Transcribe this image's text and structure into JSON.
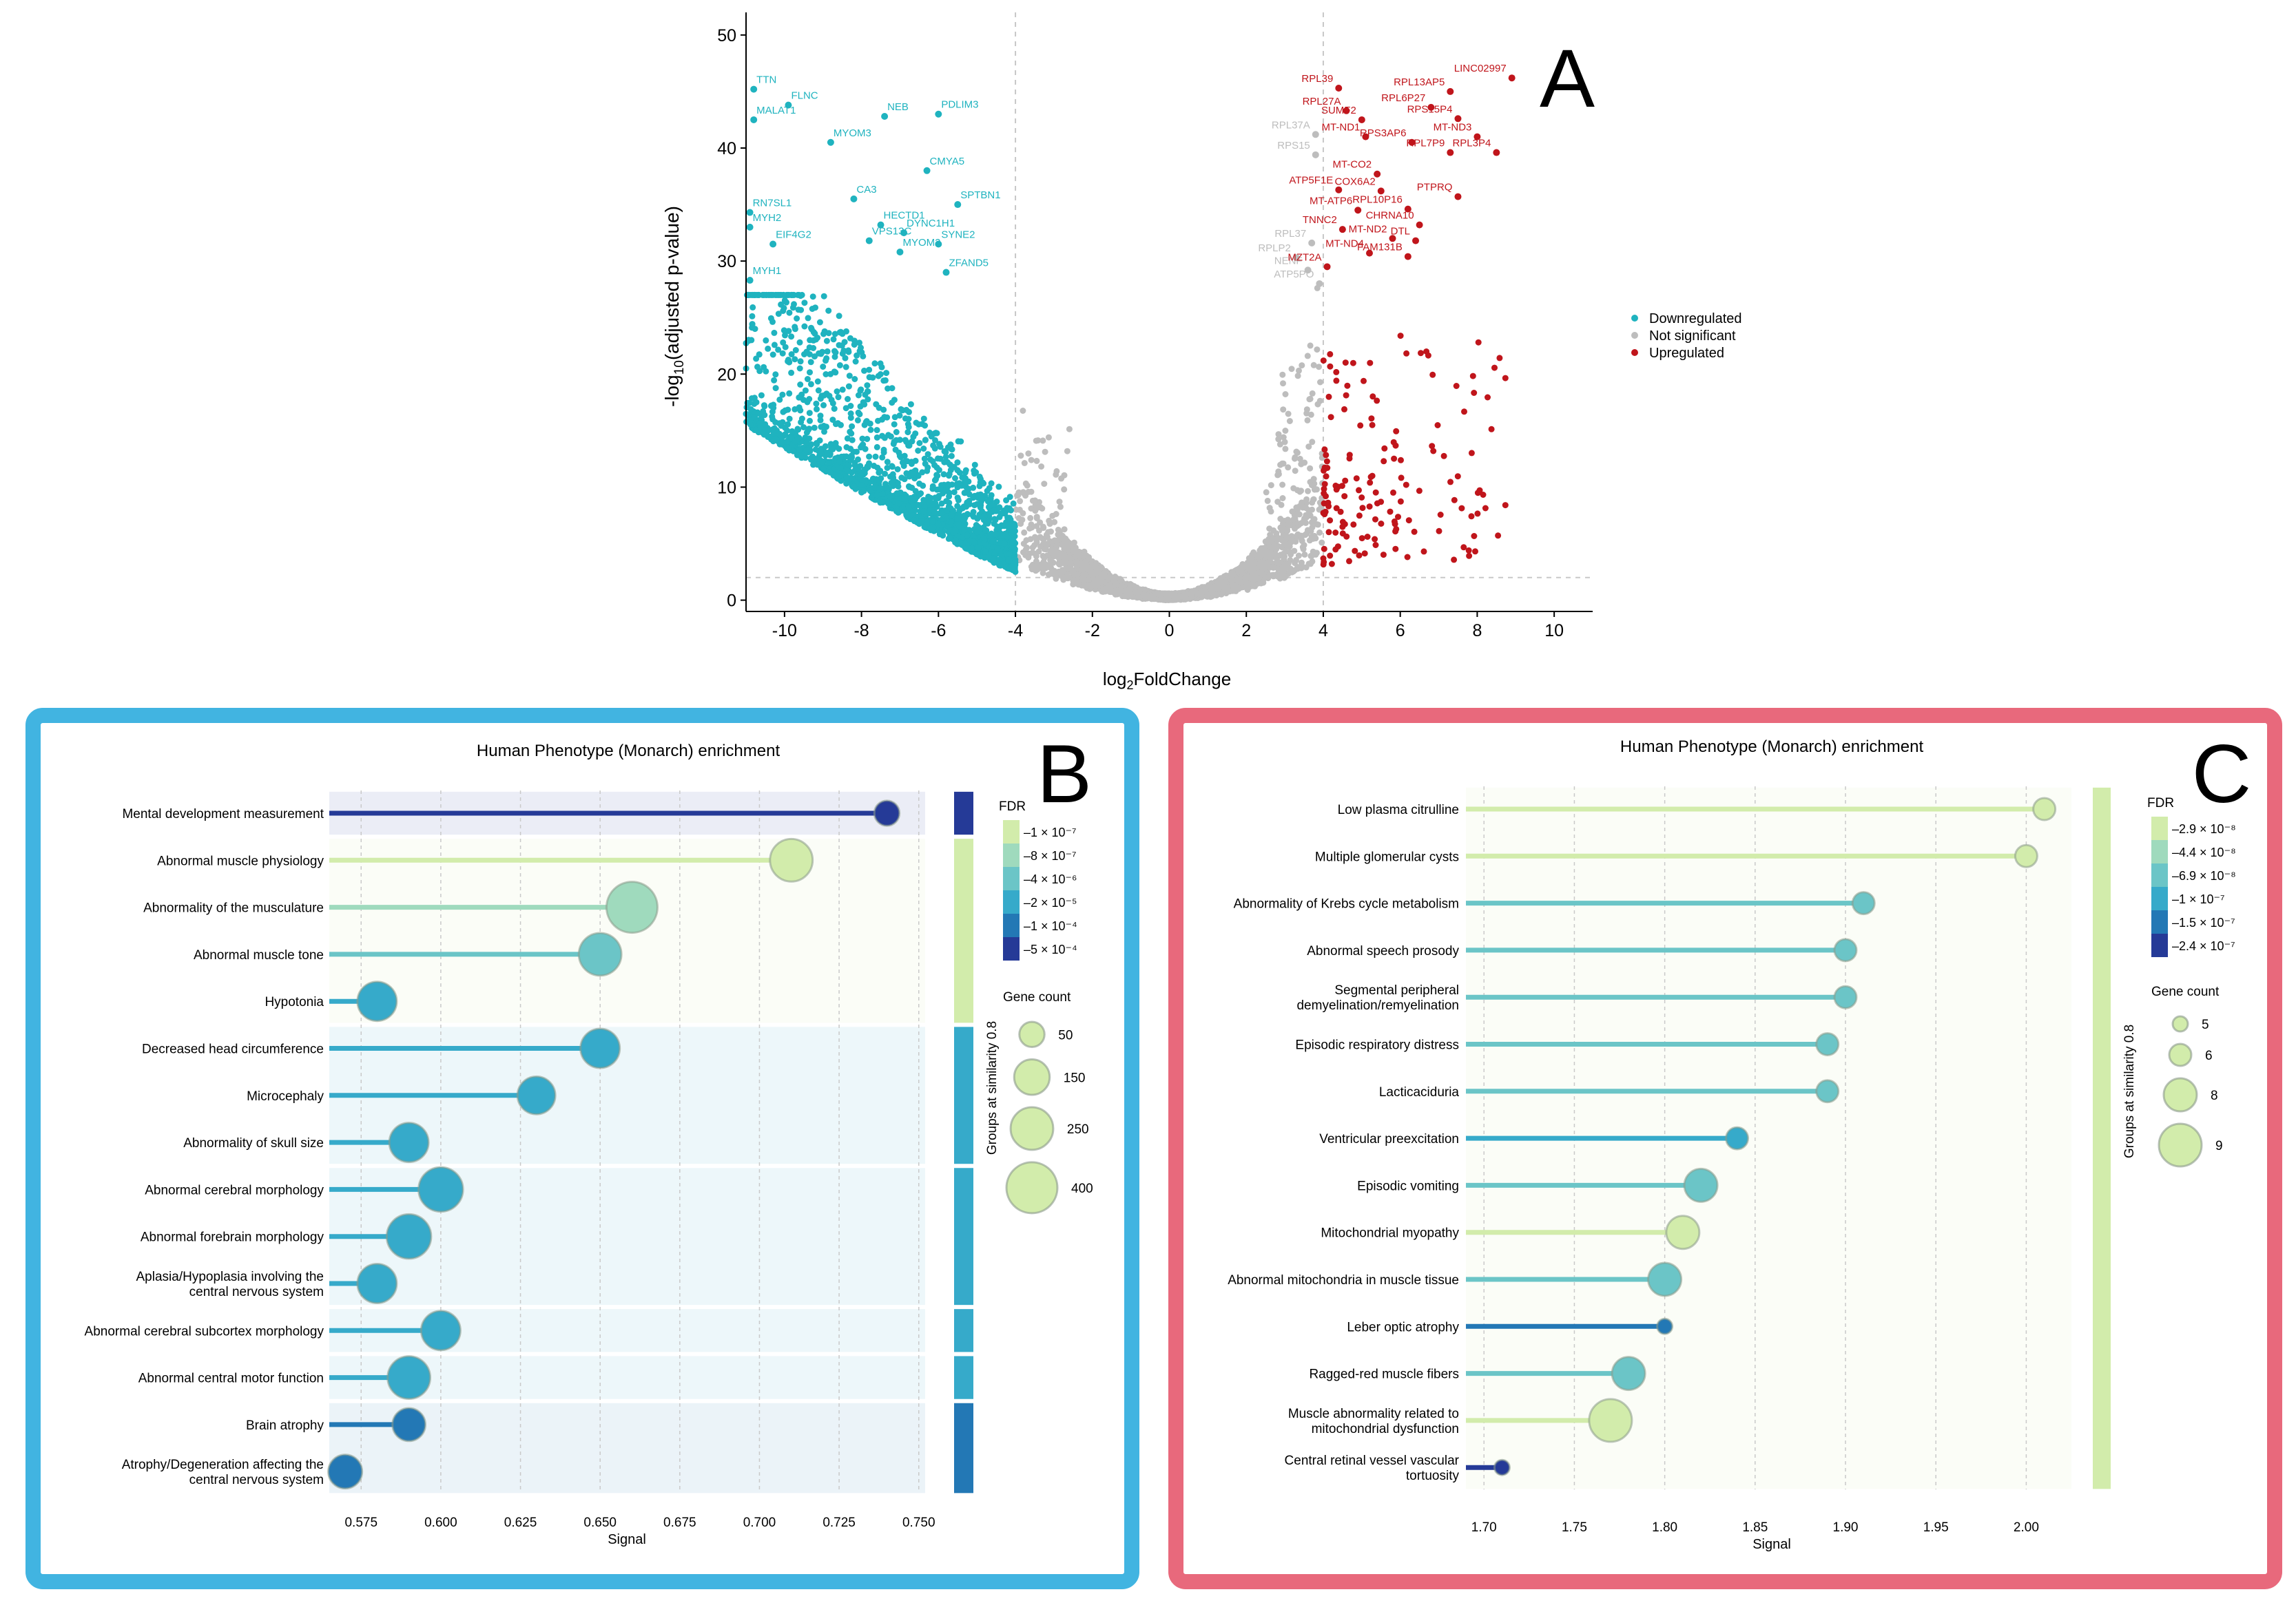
{
  "colors": {
    "down": "#1fb3bf",
    "ns": "#bdbdbd",
    "up": "#c0151b",
    "panelB_border": "#41b4e1",
    "panelC_border": "#e8697c"
  },
  "chart_data": [
    {
      "type": "scatter",
      "panel_label": "A",
      "title": "",
      "xlabel": "log2FoldChange",
      "ylabel": "-log10(adjusted p-value)",
      "xlim": [
        -11,
        11
      ],
      "ylim": [
        -1,
        52
      ],
      "x_ticks": [
        -10,
        -8,
        -6,
        -4,
        -2,
        0,
        2,
        4,
        6,
        8,
        10
      ],
      "y_ticks": [
        0,
        10,
        20,
        30,
        40,
        50
      ],
      "thresholds": {
        "logfc": [
          -4,
          4
        ],
        "padj": 2
      },
      "legend": {
        "position": "right",
        "entries": [
          {
            "label": "Downregulated",
            "key": "down"
          },
          {
            "label": "Not significant",
            "key": "ns"
          },
          {
            "label": "Upregulated",
            "key": "up"
          }
        ]
      },
      "labeled_points": [
        {
          "gene": "TTN",
          "x": -10.8,
          "y": 45.2,
          "group": "down"
        },
        {
          "gene": "FLNC",
          "x": -9.9,
          "y": 43.8,
          "group": "down"
        },
        {
          "gene": "MALAT1",
          "x": -10.8,
          "y": 42.5,
          "group": "down"
        },
        {
          "gene": "NEB",
          "x": -7.4,
          "y": 42.8,
          "group": "down"
        },
        {
          "gene": "PDLIM3",
          "x": -6.0,
          "y": 43.0,
          "group": "down"
        },
        {
          "gene": "MYOM3",
          "x": -8.8,
          "y": 40.5,
          "group": "down"
        },
        {
          "gene": "CMYA5",
          "x": -6.3,
          "y": 38.0,
          "group": "down"
        },
        {
          "gene": "CA3",
          "x": -8.2,
          "y": 35.5,
          "group": "down"
        },
        {
          "gene": "SPTBN1",
          "x": -5.5,
          "y": 35.0,
          "group": "down"
        },
        {
          "gene": "RN7SL1",
          "x": -10.9,
          "y": 34.3,
          "group": "down"
        },
        {
          "gene": "MYH2",
          "x": -10.9,
          "y": 33.0,
          "group": "down"
        },
        {
          "gene": "HECTD1",
          "x": -7.5,
          "y": 33.2,
          "group": "down"
        },
        {
          "gene": "DYNC1H1",
          "x": -6.9,
          "y": 32.5,
          "group": "down"
        },
        {
          "gene": "EIF4G2",
          "x": -10.3,
          "y": 31.5,
          "group": "down"
        },
        {
          "gene": "VPS13C",
          "x": -7.8,
          "y": 31.8,
          "group": "down"
        },
        {
          "gene": "SYNE2",
          "x": -6.0,
          "y": 31.5,
          "group": "down"
        },
        {
          "gene": "MYOM2",
          "x": -7.0,
          "y": 30.8,
          "group": "down"
        },
        {
          "gene": "ZFAND5",
          "x": -5.8,
          "y": 29.0,
          "group": "down"
        },
        {
          "gene": "MYH1",
          "x": -10.9,
          "y": 28.3,
          "group": "down"
        },
        {
          "gene": "LINC02997",
          "x": 8.9,
          "y": 46.2,
          "group": "up"
        },
        {
          "gene": "RPL39",
          "x": 4.4,
          "y": 45.3,
          "group": "up"
        },
        {
          "gene": "RPL13AP5",
          "x": 7.3,
          "y": 45.0,
          "group": "up"
        },
        {
          "gene": "RPL27A",
          "x": 4.6,
          "y": 43.3,
          "group": "up"
        },
        {
          "gene": "RPL6P27",
          "x": 6.8,
          "y": 43.6,
          "group": "up"
        },
        {
          "gene": "SUMF2",
          "x": 5.0,
          "y": 42.5,
          "group": "up"
        },
        {
          "gene": "RPS15P4",
          "x": 7.5,
          "y": 42.6,
          "group": "up"
        },
        {
          "gene": "RPL37A",
          "x": 3.8,
          "y": 41.2,
          "group": "ns"
        },
        {
          "gene": "MT-ND1",
          "x": 5.1,
          "y": 41.0,
          "group": "up"
        },
        {
          "gene": "RPS3AP6",
          "x": 6.3,
          "y": 40.5,
          "group": "up"
        },
        {
          "gene": "MT-ND3",
          "x": 8.0,
          "y": 41.0,
          "group": "up"
        },
        {
          "gene": "RPS15",
          "x": 3.8,
          "y": 39.4,
          "group": "ns"
        },
        {
          "gene": "RPL7P9",
          "x": 7.3,
          "y": 39.6,
          "group": "up"
        },
        {
          "gene": "RPL3P4",
          "x": 8.5,
          "y": 39.6,
          "group": "up"
        },
        {
          "gene": "MT-CO2",
          "x": 5.4,
          "y": 37.7,
          "group": "up"
        },
        {
          "gene": "ATP5F1E",
          "x": 4.4,
          "y": 36.3,
          "group": "up"
        },
        {
          "gene": "COX6A2",
          "x": 5.5,
          "y": 36.2,
          "group": "up"
        },
        {
          "gene": "PTPRQ",
          "x": 7.5,
          "y": 35.7,
          "group": "up"
        },
        {
          "gene": "MT-ATP6",
          "x": 4.9,
          "y": 34.5,
          "group": "up"
        },
        {
          "gene": "RPL10P16",
          "x": 6.2,
          "y": 34.6,
          "group": "up"
        },
        {
          "gene": "CHRNA10",
          "x": 6.5,
          "y": 33.2,
          "group": "up"
        },
        {
          "gene": "TNNC2",
          "x": 4.5,
          "y": 32.8,
          "group": "up"
        },
        {
          "gene": "MT-ND2",
          "x": 5.8,
          "y": 32.0,
          "group": "up"
        },
        {
          "gene": "DTL",
          "x": 6.4,
          "y": 31.8,
          "group": "up"
        },
        {
          "gene": "RPL37",
          "x": 3.7,
          "y": 31.6,
          "group": "ns"
        },
        {
          "gene": "MT-ND4",
          "x": 5.2,
          "y": 30.7,
          "group": "up"
        },
        {
          "gene": "FAM131B",
          "x": 6.2,
          "y": 30.4,
          "group": "up"
        },
        {
          "gene": "RPLP2",
          "x": 3.3,
          "y": 30.3,
          "group": "ns"
        },
        {
          "gene": "NENF",
          "x": 3.6,
          "y": 29.2,
          "group": "ns"
        },
        {
          "gene": "MZT2A",
          "x": 4.1,
          "y": 29.5,
          "group": "up"
        },
        {
          "gene": "ATP5PO",
          "x": 3.9,
          "y": 28.0,
          "group": "ns"
        }
      ]
    },
    {
      "type": "lollipop",
      "panel_label": "B",
      "title": "Human Phenotype (Monarch) enrichment",
      "xlabel": "Signal",
      "xlim": [
        0.565,
        0.752
      ],
      "x_ticks": [
        "0.575",
        "0.600",
        "0.625",
        "0.650",
        "0.675",
        "0.700",
        "0.725",
        "0.750"
      ],
      "legend_fdr_title": "FDR",
      "fdr_legend": [
        "1 × 10⁻⁷",
        "8 × 10⁻⁷",
        "4 × 10⁻⁶",
        "2 × 10⁻⁵",
        "1 × 10⁻⁴",
        "5 × 10⁻⁴"
      ],
      "legend_size_title": "Gene count",
      "size_legend": [
        "50",
        "150",
        "250",
        "400"
      ],
      "group_label": "Groups at similarity 0.8",
      "terms": [
        {
          "label": [
            "Mental development measurement"
          ],
          "signal": 0.74,
          "fdr_level": 5,
          "count": 50,
          "group": 0
        },
        {
          "label": [
            "Abnormal muscle physiology"
          ],
          "signal": 0.71,
          "fdr_level": 0,
          "count": 250,
          "group": 1
        },
        {
          "label": [
            "Abnormality of the musculature"
          ],
          "signal": 0.66,
          "fdr_level": 1,
          "count": 400,
          "group": 1
        },
        {
          "label": [
            "Abnormal muscle tone"
          ],
          "signal": 0.65,
          "fdr_level": 2,
          "count": 250,
          "group": 1
        },
        {
          "label": [
            "Hypotonia"
          ],
          "signal": 0.58,
          "fdr_level": 3,
          "count": 200,
          "group": 1
        },
        {
          "label": [
            "Decreased head circumference"
          ],
          "signal": 0.65,
          "fdr_level": 3,
          "count": 200,
          "group": 2
        },
        {
          "label": [
            "Microcephaly"
          ],
          "signal": 0.63,
          "fdr_level": 3,
          "count": 180,
          "group": 2
        },
        {
          "label": [
            "Abnormality of skull size"
          ],
          "signal": 0.59,
          "fdr_level": 3,
          "count": 200,
          "group": 2
        },
        {
          "label": [
            "Abnormal cerebral morphology"
          ],
          "signal": 0.6,
          "fdr_level": 3,
          "count": 280,
          "group": 3
        },
        {
          "label": [
            "Abnormal forebrain morphology"
          ],
          "signal": 0.59,
          "fdr_level": 3,
          "count": 280,
          "group": 3
        },
        {
          "label": [
            "Aplasia/Hypoplasia involving the",
            "central nervous system"
          ],
          "signal": 0.58,
          "fdr_level": 3,
          "count": 200,
          "group": 3
        },
        {
          "label": [
            "Abnormal cerebral subcortex morphology"
          ],
          "signal": 0.6,
          "fdr_level": 3,
          "count": 200,
          "group": 4
        },
        {
          "label": [
            "Abnormal central motor function"
          ],
          "signal": 0.59,
          "fdr_level": 3,
          "count": 250,
          "group": 5
        },
        {
          "label": [
            "Brain atrophy"
          ],
          "signal": 0.59,
          "fdr_level": 4,
          "count": 120,
          "group": 6
        },
        {
          "label": [
            "Atrophy/Degeneration affecting the",
            "central nervous system"
          ],
          "signal": 0.57,
          "fdr_level": 4,
          "count": 130,
          "group": 6
        }
      ],
      "groups": [
        {
          "start": 0,
          "end": 0,
          "fdr_level": 5
        },
        {
          "start": 1,
          "end": 4,
          "fdr_level": 0
        },
        {
          "start": 5,
          "end": 7,
          "fdr_level": 3
        },
        {
          "start": 8,
          "end": 10,
          "fdr_level": 3
        },
        {
          "start": 11,
          "end": 11,
          "fdr_level": 3
        },
        {
          "start": 12,
          "end": 12,
          "fdr_level": 3
        },
        {
          "start": 13,
          "end": 14,
          "fdr_level": 4
        }
      ]
    },
    {
      "type": "lollipop",
      "panel_label": "C",
      "title": "Human Phenotype (Monarch) enrichment",
      "xlabel": "Signal",
      "xlim": [
        1.69,
        2.025
      ],
      "x_ticks": [
        "1.70",
        "1.75",
        "1.80",
        "1.85",
        "1.90",
        "1.95",
        "2.00"
      ],
      "legend_fdr_title": "FDR",
      "fdr_legend": [
        "2.9 × 10⁻⁸",
        "4.4 × 10⁻⁸",
        "6.9 × 10⁻⁸",
        "1 × 10⁻⁷",
        "1.5 × 10⁻⁷",
        "2.4 × 10⁻⁷"
      ],
      "legend_size_title": "Gene count",
      "size_legend": [
        "5",
        "6",
        "8",
        "9"
      ],
      "group_label": "Groups at similarity 0.8",
      "terms": [
        {
          "label": [
            "Low plasma citrulline"
          ],
          "signal": 2.01,
          "fdr_level": 0,
          "count": 6,
          "group": 0
        },
        {
          "label": [
            "Multiple glomerular cysts"
          ],
          "signal": 2.0,
          "fdr_level": 0,
          "count": 6,
          "group": 0
        },
        {
          "label": [
            "Abnormality of Krebs cycle metabolism"
          ],
          "signal": 1.91,
          "fdr_level": 2,
          "count": 6,
          "group": 0
        },
        {
          "label": [
            "Abnormal speech prosody"
          ],
          "signal": 1.9,
          "fdr_level": 2,
          "count": 6,
          "group": 0
        },
        {
          "label": [
            "Segmental peripheral",
            "demyelination/remyelination"
          ],
          "signal": 1.9,
          "fdr_level": 2,
          "count": 6,
          "group": 0
        },
        {
          "label": [
            "Episodic respiratory distress"
          ],
          "signal": 1.89,
          "fdr_level": 2,
          "count": 6,
          "group": 0
        },
        {
          "label": [
            "Lacticaciduria"
          ],
          "signal": 1.89,
          "fdr_level": 2,
          "count": 6,
          "group": 0
        },
        {
          "label": [
            "Ventricular preexcitation"
          ],
          "signal": 1.84,
          "fdr_level": 3,
          "count": 6,
          "group": 0
        },
        {
          "label": [
            "Episodic vomiting"
          ],
          "signal": 1.82,
          "fdr_level": 2,
          "count": 8,
          "group": 0
        },
        {
          "label": [
            "Mitochondrial myopathy"
          ],
          "signal": 1.81,
          "fdr_level": 0,
          "count": 8,
          "group": 0
        },
        {
          "label": [
            "Abnormal mitochondria in muscle tissue"
          ],
          "signal": 1.8,
          "fdr_level": 2,
          "count": 8,
          "group": 0
        },
        {
          "label": [
            "Leber optic atrophy"
          ],
          "signal": 1.8,
          "fdr_level": 4,
          "count": 5,
          "group": 0
        },
        {
          "label": [
            "Ragged-red muscle fibers"
          ],
          "signal": 1.78,
          "fdr_level": 2,
          "count": 8,
          "group": 0
        },
        {
          "label": [
            "Muscle abnormality related to",
            "mitochondrial dysfunction"
          ],
          "signal": 1.77,
          "fdr_level": 0,
          "count": 9,
          "group": 0
        },
        {
          "label": [
            "Central retinal vessel vascular",
            "tortuosity"
          ],
          "signal": 1.71,
          "fdr_level": 5,
          "count": 5,
          "group": 0
        }
      ],
      "groups": [
        {
          "start": 0,
          "end": 14,
          "fdr_level": 0
        }
      ]
    }
  ]
}
